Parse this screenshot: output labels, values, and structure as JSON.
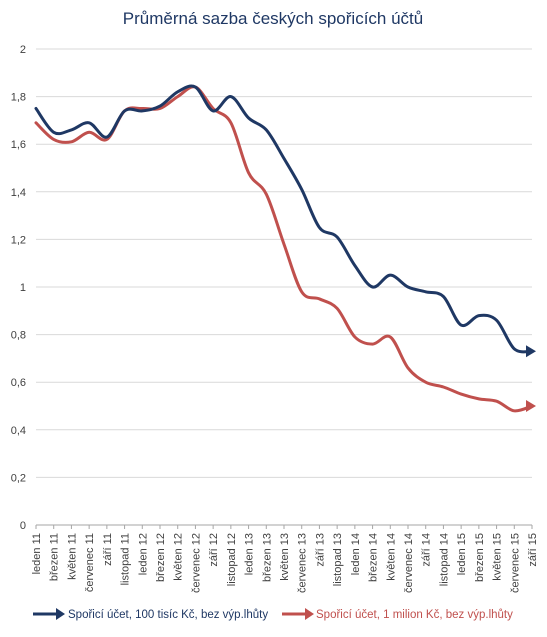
{
  "chart_data": {
    "type": "line",
    "title": "Průměrná sazba českých spořicích účtů",
    "xlabel": "",
    "ylabel": "",
    "ylim": [
      0,
      2
    ],
    "yticks": [
      "0",
      "0,2",
      "0,4",
      "0,6",
      "0,8",
      "1",
      "1,2",
      "1,4",
      "1,6",
      "1,8",
      "2"
    ],
    "grid": true,
    "legend_position": "bottom",
    "x": [
      "leden 11",
      "březen 11",
      "květen 11",
      "červenec 11",
      "září 11",
      "listopad 11",
      "leden 12",
      "březen 12",
      "květen 12",
      "červenec 12",
      "září 12",
      "listopad 12",
      "leden 13",
      "březen 13",
      "květen 13",
      "červenec 13",
      "září 13",
      "listopad 13",
      "leden 14",
      "březen 14",
      "květen 14",
      "červenec 14",
      "září 14",
      "listopad 14",
      "leden 15",
      "březen 15",
      "květen 15",
      "červenec 15",
      "září 15"
    ],
    "series": [
      {
        "name": "Spořicí účet, 100 tisíc Kč, bez výp.lhůty",
        "color": "#1f3864",
        "values": [
          1.75,
          1.65,
          1.66,
          1.69,
          1.63,
          1.74,
          1.74,
          1.76,
          1.82,
          1.84,
          1.74,
          1.8,
          1.71,
          1.66,
          1.54,
          1.41,
          1.25,
          1.21,
          1.09,
          1.0,
          1.05,
          1.0,
          0.98,
          0.96,
          0.84,
          0.88,
          0.86,
          0.74,
          0.73
        ]
      },
      {
        "name": "Spořicí účet, 1 milion Kč, bez výp.lhůty",
        "color": "#c0504d",
        "values": [
          1.69,
          1.62,
          1.61,
          1.65,
          1.62,
          1.74,
          1.75,
          1.75,
          1.8,
          1.84,
          1.75,
          1.69,
          1.48,
          1.39,
          1.18,
          0.98,
          0.95,
          0.91,
          0.79,
          0.76,
          0.79,
          0.66,
          0.6,
          0.58,
          0.55,
          0.53,
          0.52,
          0.48,
          0.5
        ]
      }
    ]
  }
}
